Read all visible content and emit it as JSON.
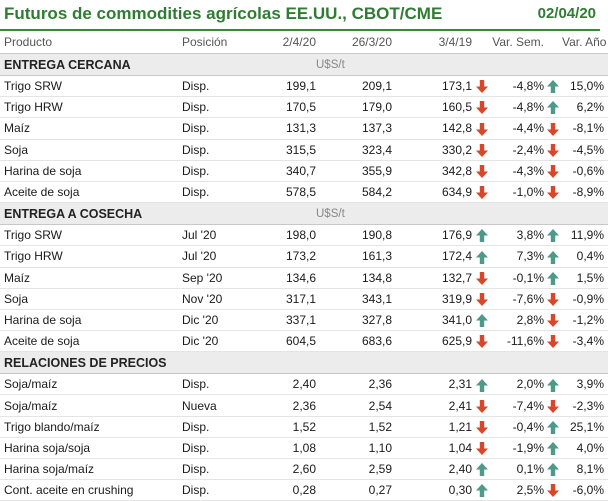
{
  "title": "Futuros de commodities agrícolas EE.UU., CBOT/CME",
  "date": "02/04/20",
  "headers": {
    "producto": "Producto",
    "posicion": "Posición",
    "d1": "2/4/20",
    "d2": "26/3/20",
    "d3": "3/4/19",
    "var_sem": "Var. Sem.",
    "var_ano": "Var. Año"
  },
  "colors": {
    "title": "#2f7d32",
    "up": "#4e9a8a",
    "down": "#d9472b",
    "section_bg": "#ececec"
  },
  "sections": [
    {
      "name": "ENTREGA CERCANA",
      "unit": "U$S/t",
      "rows": [
        {
          "producto": "Trigo SRW",
          "posicion": "Disp.",
          "v1": "199,1",
          "v2": "209,1",
          "v3": "173,1",
          "a1": "down",
          "sem": "-4,8%",
          "a2": "up",
          "ano": "15,0%"
        },
        {
          "producto": "Trigo HRW",
          "posicion": "Disp.",
          "v1": "170,5",
          "v2": "179,0",
          "v3": "160,5",
          "a1": "down",
          "sem": "-4,8%",
          "a2": "up",
          "ano": "6,2%"
        },
        {
          "producto": "Maíz",
          "posicion": "Disp.",
          "v1": "131,3",
          "v2": "137,3",
          "v3": "142,8",
          "a1": "down",
          "sem": "-4,4%",
          "a2": "down",
          "ano": "-8,1%"
        },
        {
          "producto": "Soja",
          "posicion": "Disp.",
          "v1": "315,5",
          "v2": "323,4",
          "v3": "330,2",
          "a1": "down",
          "sem": "-2,4%",
          "a2": "down",
          "ano": "-4,5%"
        },
        {
          "producto": "Harina de soja",
          "posicion": "Disp.",
          "v1": "340,7",
          "v2": "355,9",
          "v3": "342,8",
          "a1": "down",
          "sem": "-4,3%",
          "a2": "down",
          "ano": "-0,6%"
        },
        {
          "producto": "Aceite de soja",
          "posicion": "Disp.",
          "v1": "578,5",
          "v2": "584,2",
          "v3": "634,9",
          "a1": "down",
          "sem": "-1,0%",
          "a2": "down",
          "ano": "-8,9%"
        }
      ]
    },
    {
      "name": "ENTREGA A COSECHA",
      "unit": "U$S/t",
      "rows": [
        {
          "producto": "Trigo SRW",
          "posicion": "Jul '20",
          "v1": "198,0",
          "v2": "190,8",
          "v3": "176,9",
          "a1": "up",
          "sem": "3,8%",
          "a2": "up",
          "ano": "11,9%"
        },
        {
          "producto": "Trigo HRW",
          "posicion": "Jul '20",
          "v1": "173,2",
          "v2": "161,3",
          "v3": "172,4",
          "a1": "up",
          "sem": "7,3%",
          "a2": "up",
          "ano": "0,4%"
        },
        {
          "producto": "Maíz",
          "posicion": "Sep '20",
          "v1": "134,6",
          "v2": "134,8",
          "v3": "132,7",
          "a1": "down",
          "sem": "-0,1%",
          "a2": "up",
          "ano": "1,5%"
        },
        {
          "producto": "Soja",
          "posicion": "Nov '20",
          "v1": "317,1",
          "v2": "343,1",
          "v3": "319,9",
          "a1": "down",
          "sem": "-7,6%",
          "a2": "down",
          "ano": "-0,9%"
        },
        {
          "producto": "Harina de soja",
          "posicion": "Dic '20",
          "v1": "337,1",
          "v2": "327,8",
          "v3": "341,0",
          "a1": "up",
          "sem": "2,8%",
          "a2": "down",
          "ano": "-1,2%"
        },
        {
          "producto": "Aceite de soja",
          "posicion": "Dic '20",
          "v1": "604,5",
          "v2": "683,6",
          "v3": "625,9",
          "a1": "down",
          "sem": "-11,6%",
          "a2": "down",
          "ano": "-3,4%"
        }
      ]
    },
    {
      "name": "RELACIONES DE PRECIOS",
      "unit": "",
      "rows": [
        {
          "producto": "Soja/maíz",
          "posicion": "Disp.",
          "v1": "2,40",
          "v2": "2,36",
          "v3": "2,31",
          "a1": "up",
          "sem": "2,0%",
          "a2": "up",
          "ano": "3,9%"
        },
        {
          "producto": "Soja/maíz",
          "posicion": "Nueva",
          "v1": "2,36",
          "v2": "2,54",
          "v3": "2,41",
          "a1": "down",
          "sem": "-7,4%",
          "a2": "down",
          "ano": "-2,3%"
        },
        {
          "producto": "Trigo blando/maíz",
          "posicion": "Disp.",
          "v1": "1,52",
          "v2": "1,52",
          "v3": "1,21",
          "a1": "down",
          "sem": "-0,4%",
          "a2": "up",
          "ano": "25,1%"
        },
        {
          "producto": "Harina soja/soja",
          "posicion": "Disp.",
          "v1": "1,08",
          "v2": "1,10",
          "v3": "1,04",
          "a1": "down",
          "sem": "-1,9%",
          "a2": "up",
          "ano": "4,0%"
        },
        {
          "producto": "Harina soja/maíz",
          "posicion": "Disp.",
          "v1": "2,60",
          "v2": "2,59",
          "v3": "2,40",
          "a1": "up",
          "sem": "0,1%",
          "a2": "up",
          "ano": "8,1%"
        },
        {
          "producto": "Cont. aceite en crushing",
          "posicion": "Disp.",
          "v1": "0,28",
          "v2": "0,27",
          "v3": "0,30",
          "a1": "up",
          "sem": "2,5%",
          "a2": "down",
          "ano": "-6,0%"
        }
      ]
    }
  ]
}
